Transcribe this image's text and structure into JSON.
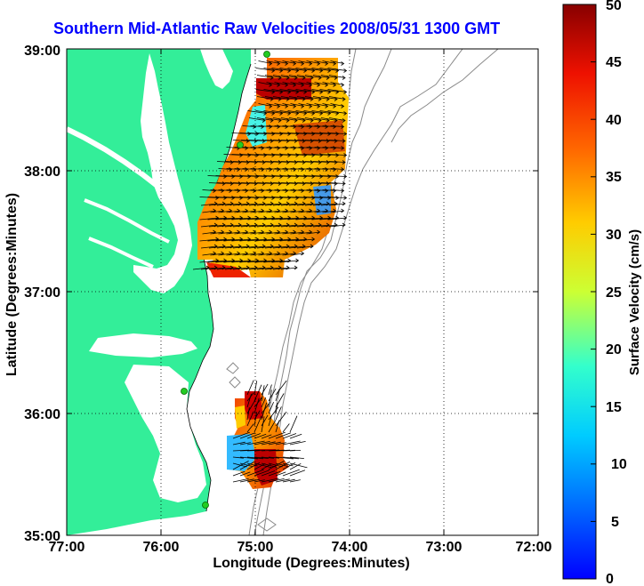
{
  "title": "Southern Mid-Atlantic Raw Velocities 2008/05/31 1300 GMT",
  "map": {
    "xlabel": "Longitude (Degrees:Minutes)",
    "ylabel": "Latitude (Degrees:Minutes)",
    "x_ticks": [
      "77:00",
      "76:00",
      "75:00",
      "74:00",
      "73:00",
      "72:00"
    ],
    "y_ticks": [
      "39:00",
      "38:00",
      "37:00",
      "36:00",
      "35:00"
    ],
    "lon_range": [
      -77,
      -72
    ],
    "lat_range": [
      35,
      39
    ],
    "grid": "dotted",
    "colors": {
      "land": "#33ee99",
      "water": "#ffffff",
      "bathymetry": "#8a8a8a",
      "station": "#22cc22"
    }
  },
  "colorbar": {
    "label": "Surface Velocity (cm/s)",
    "ticks": [
      "50",
      "45",
      "40",
      "35",
      "30",
      "25",
      "20",
      "15",
      "10",
      "5",
      "0"
    ],
    "range": [
      0,
      50
    ],
    "colormap": "jet"
  }
}
